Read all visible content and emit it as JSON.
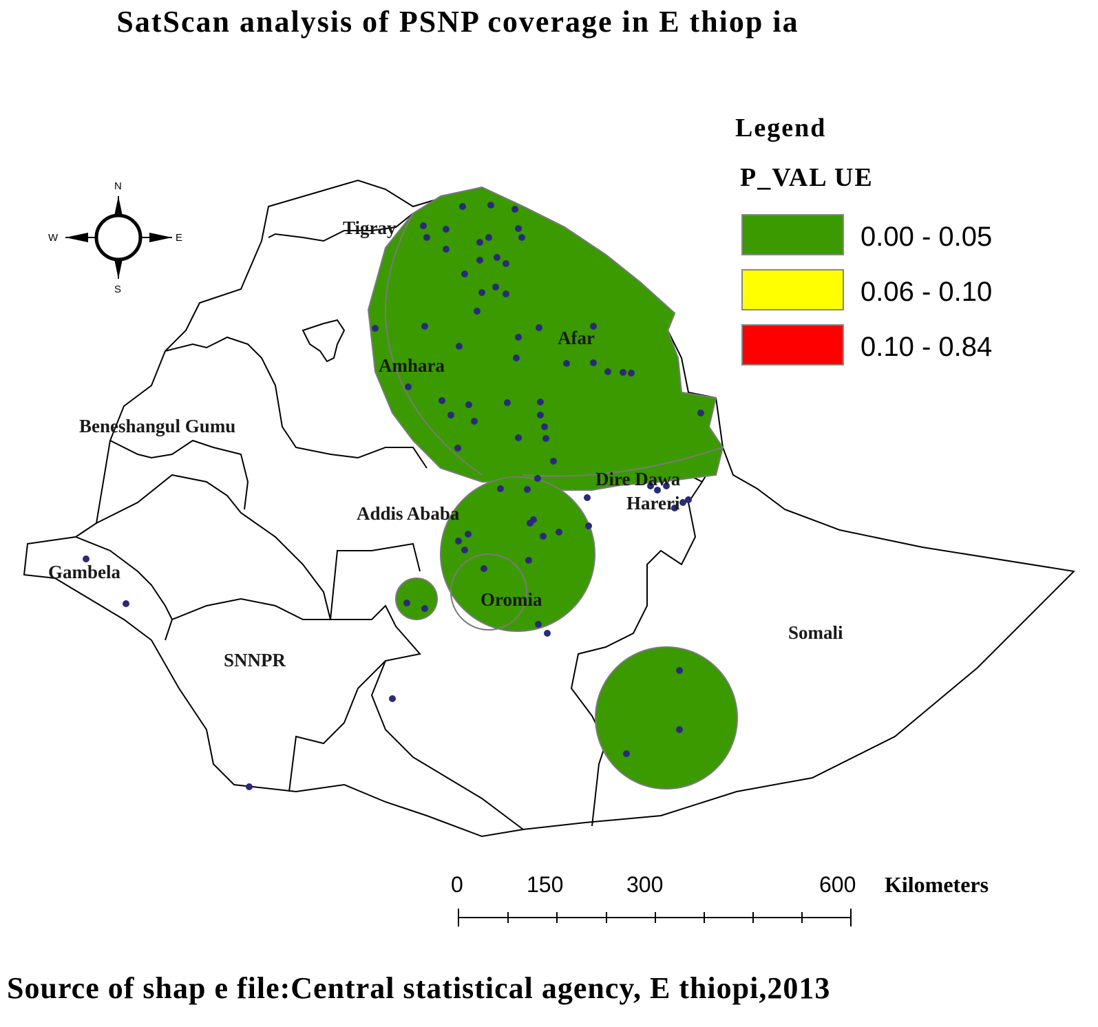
{
  "title": "SatScan analysis of PSNP coverage in E thiop ia",
  "source": "Source of shap e file:Central statistical agency, E thiopi,2013",
  "compass": {
    "north": "N",
    "south": "S",
    "east": "E",
    "west": "W"
  },
  "legend": {
    "heading": "Legend",
    "field": "P_VAL UE",
    "classes": [
      {
        "label": "0.00 - 0.05",
        "color": "#3a9a00"
      },
      {
        "label": "0.06 - 0.10",
        "color": "#ffff00"
      },
      {
        "label": "0.10 - 0.84",
        "color": "#ff0000"
      }
    ]
  },
  "regions": {
    "tigray": "Tigray",
    "afar": "Afar",
    "amhara": "Amhara",
    "benishangul": "Beneshangul Gumu",
    "addis": "Addis Ababa",
    "dire_dawa": "Dire Dawa",
    "harari": "Hareri",
    "gambela": "Gambela",
    "oromia": "Oromia",
    "somali": "Somali",
    "snnpr": "SNNPR"
  },
  "scale_bar": {
    "ticks": [
      "0",
      "150",
      "300",
      "600"
    ],
    "unit": "Kilometers"
  },
  "cluster_color": "#3a9a00",
  "point_color": "#2a2a7a"
}
